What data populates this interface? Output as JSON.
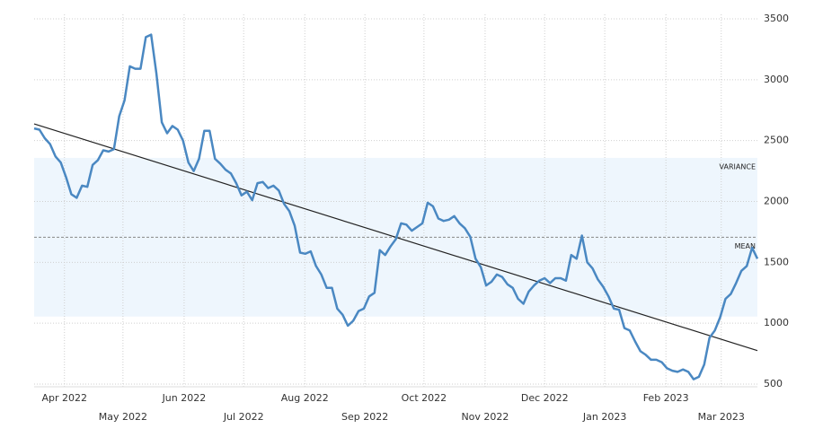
{
  "chart_data": {
    "type": "line",
    "series": [
      {
        "color": "#4a88c2",
        "values": [
          2600,
          2590,
          2520,
          2470,
          2370,
          2320,
          2200,
          2060,
          2030,
          2130,
          2120,
          2300,
          2340,
          2420,
          2410,
          2430,
          2700,
          2830,
          3110,
          3090,
          3090,
          3350,
          3370,
          3050,
          2650,
          2560,
          2620,
          2590,
          2500,
          2320,
          2250,
          2350,
          2580,
          2580,
          2350,
          2310,
          2260,
          2230,
          2150,
          2050,
          2080,
          2010,
          2150,
          2160,
          2110,
          2130,
          2090,
          1980,
          1920,
          1800,
          1580,
          1570,
          1590,
          1470,
          1400,
          1290,
          1290,
          1120,
          1070,
          980,
          1020,
          1100,
          1120,
          1220,
          1250,
          1600,
          1560,
          1630,
          1690,
          1820,
          1810,
          1760,
          1790,
          1820,
          1990,
          1960,
          1860,
          1840,
          1850,
          1880,
          1820,
          1780,
          1710,
          1530,
          1460,
          1310,
          1340,
          1400,
          1380,
          1320,
          1290,
          1200,
          1160,
          1260,
          1310,
          1350,
          1370,
          1330,
          1370,
          1370,
          1350,
          1560,
          1530,
          1720,
          1500,
          1450,
          1360,
          1300,
          1220,
          1120,
          1110,
          960,
          940,
          850,
          770,
          740,
          700,
          700,
          680,
          630,
          610,
          600,
          620,
          600,
          540,
          560,
          660,
          880,
          940,
          1050,
          1200,
          1240,
          1330,
          1430,
          1470,
          1620,
          1530
        ]
      }
    ],
    "xlim": [
      0,
      136
    ],
    "xticks": [
      {
        "value": 5.7,
        "label": "Apr 2022"
      },
      {
        "value": 16.7,
        "label": "May 2022"
      },
      {
        "value": 28.2,
        "label": "Jun 2022"
      },
      {
        "value": 39.4,
        "label": "Jul 2022"
      },
      {
        "value": 50.9,
        "label": "Aug 2022"
      },
      {
        "value": 62.2,
        "label": "Sep 2022"
      },
      {
        "value": 73.3,
        "label": "Oct 2022"
      },
      {
        "value": 84.8,
        "label": "Nov 2022"
      },
      {
        "value": 96.0,
        "label": "Dec 2022"
      },
      {
        "value": 107.3,
        "label": "Jan 2023"
      },
      {
        "value": 118.8,
        "label": "Feb 2023"
      },
      {
        "value": 129.2,
        "label": "Mar 2023"
      }
    ],
    "ylim": [
      500,
      3500
    ],
    "yticks": [
      500,
      1000,
      1500,
      2000,
      2500,
      3000,
      3500
    ],
    "grid": true,
    "mean_label": "MEAN",
    "variance_label": "VARIANCE"
  }
}
